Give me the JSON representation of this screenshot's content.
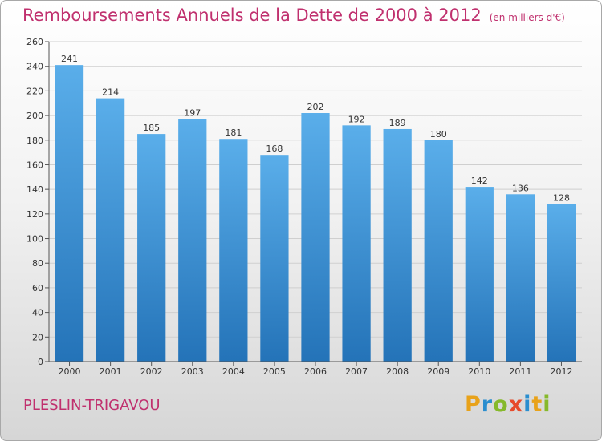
{
  "header": {
    "title": "Remboursements Annuels de la Dette de 2000 à 2012",
    "subtitle": "(en milliers d'€)"
  },
  "footer": {
    "city": "PLESLIN-TRIGAVOU",
    "logo": "Proxiti"
  },
  "colors": {
    "title": "#c0306e",
    "bar_top": "#5aaeea",
    "bar_bottom": "#2473b8"
  },
  "chart_data": {
    "type": "bar",
    "title": "Remboursements Annuels de la Dette de 2000 à 2012",
    "subtitle": "(en milliers d'€)",
    "categories": [
      "2000",
      "2001",
      "2002",
      "2003",
      "2004",
      "2005",
      "2006",
      "2007",
      "2008",
      "2009",
      "2010",
      "2011",
      "2012"
    ],
    "values": [
      241,
      214,
      185,
      197,
      181,
      168,
      202,
      192,
      189,
      180,
      142,
      136,
      128
    ],
    "ylim": [
      0,
      260
    ],
    "yticks": [
      0,
      20,
      40,
      60,
      80,
      100,
      120,
      140,
      160,
      180,
      200,
      220,
      240,
      260
    ],
    "grid": true,
    "data_labels": true
  }
}
